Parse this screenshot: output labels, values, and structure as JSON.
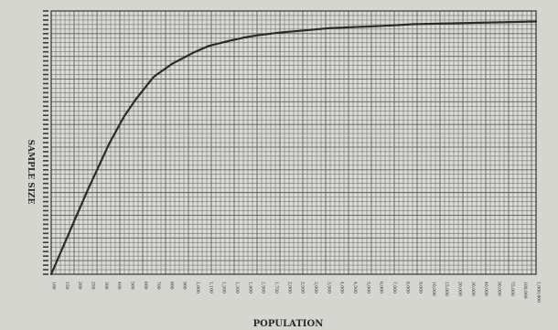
{
  "chart_data": {
    "type": "line",
    "xlabel": "POPULATION",
    "ylabel": "SAMPLE SIZE",
    "x_scale": "log",
    "grid": true,
    "legend": "none",
    "xlim": [
      100,
      1000000
    ],
    "ylim": [
      0,
      400
    ],
    "x_tick_labels": [
      "100",
      "150",
      "200",
      "250",
      "300",
      "400",
      "500",
      "600",
      "700",
      "800",
      "900",
      "1,000",
      "1,100",
      "1,200",
      "1,300",
      "1,400",
      "1,500",
      "1,750",
      "2,000",
      "2,500",
      "3,000",
      "3,500",
      "4,000",
      "4,500",
      "5,000",
      "6,000",
      "7,000",
      "8,000",
      "9,000",
      "10,000",
      "15,000",
      "20,000",
      "30,000",
      "40,000",
      "50,000",
      "75,000",
      "100,000",
      "1,000,000"
    ],
    "series": [
      {
        "x": [
          100,
          150,
          200,
          300,
          400,
          500,
          700,
          1000,
          1500,
          2000,
          3000,
          4000,
          5000,
          7500,
          10000,
          20000,
          50000,
          100000,
          1000000
        ],
        "y": [
          0,
          75,
          128,
          198,
          240,
          266,
          300,
          320,
          337,
          347,
          355,
          360,
          363,
          367,
          369,
          374,
          377,
          380,
          384
        ]
      }
    ],
    "colors": {
      "line": "#2a2a2a",
      "grid": "#5a5a5a",
      "background": "#dcdcd6"
    }
  }
}
